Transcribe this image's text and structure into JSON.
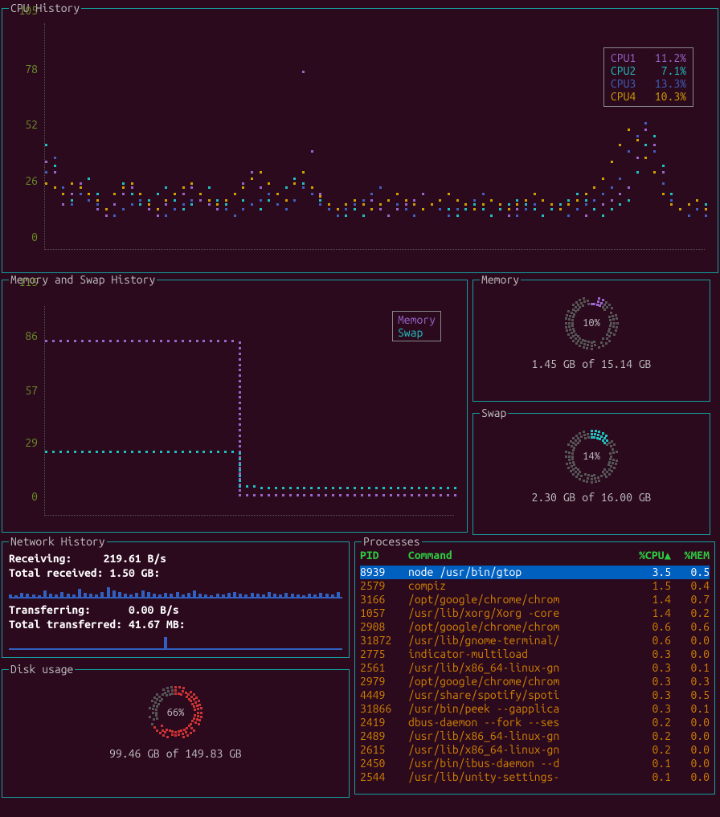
{
  "colors": {
    "bg": "#2c0a1e",
    "border": "#14a0a0",
    "axis_label": "#6b8e23",
    "text": "#c0c0c0",
    "cpu1": "#9966cc",
    "cpu2": "#20c0c0",
    "cpu3": "#4060c0",
    "cpu4": "#d0a000",
    "memory": "#9966cc",
    "swap": "#20c0c0",
    "net_bar": "#3060c0",
    "disk_fg": "#cc3333",
    "disk_bg": "#555555",
    "proc_header": "#2ecc40",
    "proc_text": "#d08000",
    "selected_bg": "#0060c0"
  },
  "cpu": {
    "title": "CPU History",
    "yticks": [
      0,
      26,
      52,
      78,
      105
    ],
    "ymax": 105,
    "legend": [
      {
        "label": "CPU1",
        "value": "11.2%",
        "color": "#9966cc"
      },
      {
        "label": "CPU2",
        "value": "7.1%",
        "color": "#20c0c0"
      },
      {
        "label": "CPU3",
        "value": "13.3%",
        "color": "#4060c0"
      },
      {
        "label": "CPU4",
        "value": "10.3%",
        "color": "#d0a000"
      }
    ],
    "series": {
      "cpu1": [
        40,
        35,
        20,
        25,
        30,
        22,
        18,
        15,
        20,
        25,
        28,
        22,
        18,
        15,
        20,
        22,
        25,
        28,
        22,
        20,
        18,
        22,
        25,
        30,
        35,
        28,
        22,
        20,
        18,
        22,
        82,
        45,
        25,
        20,
        18,
        15,
        18,
        20,
        22,
        18,
        15,
        18,
        20,
        22,
        25,
        20,
        18,
        15,
        18,
        20,
        22,
        25,
        22,
        18,
        15,
        18,
        20,
        18,
        15,
        18,
        20,
        22,
        18,
        15,
        18,
        20,
        22,
        25,
        28,
        42,
        55,
        48,
        35,
        22,
        18,
        15,
        18,
        20
      ],
      "cpu2": [
        48,
        38,
        25,
        22,
        28,
        32,
        25,
        18,
        25,
        30,
        25,
        20,
        22,
        25,
        28,
        22,
        18,
        20,
        25,
        28,
        22,
        20,
        25,
        22,
        20,
        18,
        22,
        25,
        28,
        32,
        30,
        25,
        22,
        20,
        18,
        15,
        18,
        15,
        18,
        20,
        22,
        20,
        18,
        15,
        18,
        20,
        22,
        18,
        15,
        18,
        20,
        18,
        15,
        18,
        20,
        22,
        20,
        18,
        15,
        18,
        20,
        22,
        25,
        22,
        18,
        15,
        18,
        20,
        22,
        35,
        48,
        52,
        38,
        25,
        18,
        15,
        18,
        20
      ],
      "cpu3": [
        35,
        42,
        28,
        20,
        25,
        22,
        20,
        18,
        15,
        18,
        20,
        22,
        20,
        18,
        15,
        18,
        20,
        22,
        25,
        22,
        20,
        18,
        15,
        18,
        20,
        22,
        25,
        20,
        18,
        22,
        28,
        25,
        20,
        18,
        15,
        18,
        20,
        22,
        25,
        28,
        22,
        20,
        18,
        15,
        18,
        20,
        18,
        15,
        18,
        20,
        22,
        25,
        22,
        20,
        18,
        15,
        18,
        20,
        22,
        20,
        18,
        15,
        18,
        20,
        22,
        25,
        28,
        32,
        45,
        52,
        58,
        45,
        30,
        22,
        18,
        15,
        18,
        15
      ],
      "cpu4": [
        30,
        28,
        25,
        30,
        28,
        25,
        22,
        18,
        25,
        28,
        30,
        25,
        20,
        18,
        22,
        25,
        28,
        30,
        25,
        22,
        20,
        22,
        25,
        28,
        32,
        35,
        30,
        25,
        22,
        30,
        35,
        28,
        24,
        20,
        18,
        20,
        22,
        20,
        18,
        20,
        22,
        25,
        22,
        20,
        18,
        20,
        22,
        25,
        22,
        20,
        18,
        20,
        22,
        20,
        18,
        20,
        22,
        25,
        22,
        20,
        18,
        20,
        22,
        25,
        28,
        32,
        40,
        48,
        55,
        50,
        42,
        35,
        25,
        20,
        18,
        20,
        22,
        18
      ]
    }
  },
  "mem_hist": {
    "title": "Memory and Swap History",
    "yticks": [
      0,
      29,
      57,
      86,
      115
    ],
    "ymax": 115,
    "legend": [
      {
        "label": "Memory",
        "color": "#9966cc"
      },
      {
        "label": "Swap",
        "color": "#20c0c0"
      }
    ],
    "memory_series": [
      95,
      95,
      95,
      95,
      95,
      95,
      95,
      95,
      95,
      95,
      95,
      95,
      95,
      95,
      95,
      95,
      95,
      95,
      95,
      95,
      95,
      95,
      95,
      95,
      95,
      95,
      95,
      10,
      10,
      10,
      10,
      10,
      10,
      10,
      10,
      10,
      10,
      10,
      10,
      10,
      10,
      10,
      10,
      10,
      10,
      10,
      10,
      10,
      10,
      10,
      10,
      10,
      10,
      10,
      10,
      10,
      10,
      10
    ],
    "swap_series": [
      34,
      34,
      34,
      34,
      34,
      34,
      34,
      34,
      34,
      34,
      34,
      34,
      34,
      34,
      34,
      34,
      34,
      34,
      34,
      34,
      34,
      34,
      34,
      34,
      34,
      34,
      34,
      15,
      15,
      15,
      14,
      14,
      14,
      14,
      14,
      14,
      14,
      14,
      14,
      14,
      14,
      14,
      14,
      14,
      14,
      14,
      14,
      14,
      14,
      14,
      14,
      14,
      14,
      14,
      14,
      14,
      14,
      14
    ]
  },
  "memory": {
    "title": "Memory",
    "percent": 10,
    "percent_label": "10%",
    "text": "1.45 GB of 15.14 GB",
    "fg_color": "#9966cc",
    "bg_color": "#555555"
  },
  "swap": {
    "title": "Swap",
    "percent": 14,
    "percent_label": "14%",
    "text": "2.30 GB of 16.00 GB",
    "fg_color": "#20c0c0",
    "bg_color": "#555555"
  },
  "network": {
    "title": "Network History",
    "receiving_label": "Receiving:",
    "receiving_value": "219.61 B/s",
    "total_received_label": "Total received:",
    "total_received_value": "1.50 GB:",
    "transferring_label": "Transferring:",
    "transferring_value": "0.00 B/s",
    "total_transferred_label": "Total transferred:",
    "total_transferred_value": "41.67 MB:",
    "rx_bars": [
      3,
      2,
      5,
      4,
      3,
      2,
      8,
      4,
      3,
      6,
      4,
      3,
      10,
      5,
      4,
      3,
      6,
      12,
      8,
      6,
      4,
      3,
      5,
      8,
      6,
      4,
      3,
      5,
      4,
      6,
      3,
      5,
      8,
      4,
      3,
      2,
      4,
      3,
      5,
      6,
      4,
      3,
      5,
      4,
      3,
      6,
      4,
      3,
      5,
      4,
      3,
      2,
      4,
      3,
      5,
      4,
      3,
      6
    ],
    "tx_bars": [
      0,
      0,
      0,
      0,
      0,
      0,
      0,
      0,
      0,
      0,
      0,
      0,
      0,
      0,
      0,
      0,
      0,
      0,
      0,
      0,
      0,
      0,
      0,
      0,
      0,
      0,
      0,
      14,
      0,
      0,
      0,
      0,
      0,
      0,
      0,
      0,
      0,
      0,
      0,
      0,
      0,
      0,
      0,
      0,
      0,
      0,
      0,
      0,
      0,
      0,
      0,
      0,
      0,
      0,
      0,
      0,
      0,
      0
    ]
  },
  "disk": {
    "title": "Disk usage",
    "percent": 66,
    "percent_label": "66%",
    "text": "99.46 GB of 149.83 GB",
    "fg_color": "#cc3333",
    "bg_color": "#555555"
  },
  "processes": {
    "title": "Processes",
    "headers": {
      "pid": "PID",
      "cmd": "Command",
      "cpu": "%CPU",
      "mem": "%MEM",
      "sort_indicator": "▲"
    },
    "rows": [
      {
        "pid": "8939",
        "cmd": "node /usr/bin/gtop",
        "cpu": "3.5",
        "mem": "0.5",
        "selected": true
      },
      {
        "pid": "2579",
        "cmd": "compiz",
        "cpu": "1.5",
        "mem": "0.4"
      },
      {
        "pid": "3166",
        "cmd": "/opt/google/chrome/chrom",
        "cpu": "1.4",
        "mem": "0.7"
      },
      {
        "pid": "1057",
        "cmd": "/usr/lib/xorg/Xorg -core",
        "cpu": "1.4",
        "mem": "0.2"
      },
      {
        "pid": "2908",
        "cmd": "/opt/google/chrome/chrom",
        "cpu": "0.6",
        "mem": "0.6"
      },
      {
        "pid": "31872",
        "cmd": "/usr/lib/gnome-terminal/",
        "cpu": "0.6",
        "mem": "0.0"
      },
      {
        "pid": "2775",
        "cmd": "indicator-multiload",
        "cpu": "0.3",
        "mem": "0.0"
      },
      {
        "pid": "2561",
        "cmd": "/usr/lib/x86_64-linux-gn",
        "cpu": "0.3",
        "mem": "0.1"
      },
      {
        "pid": "2979",
        "cmd": "/opt/google/chrome/chrom",
        "cpu": "0.3",
        "mem": "0.3"
      },
      {
        "pid": "4449",
        "cmd": "/usr/share/spotify/spoti",
        "cpu": "0.3",
        "mem": "0.5"
      },
      {
        "pid": "31866",
        "cmd": "/usr/bin/peek --gapplica",
        "cpu": "0.3",
        "mem": "0.1"
      },
      {
        "pid": "2419",
        "cmd": "dbus-daemon --fork --ses",
        "cpu": "0.2",
        "mem": "0.0"
      },
      {
        "pid": "2489",
        "cmd": "/usr/lib/x86_64-linux-gn",
        "cpu": "0.2",
        "mem": "0.0"
      },
      {
        "pid": "2615",
        "cmd": "/usr/lib/x86_64-linux-gn",
        "cpu": "0.2",
        "mem": "0.0"
      },
      {
        "pid": "2450",
        "cmd": "/usr/bin/ibus-daemon --d",
        "cpu": "0.1",
        "mem": "0.0"
      },
      {
        "pid": "2544",
        "cmd": "/usr/lib/unity-settings-",
        "cpu": "0.1",
        "mem": "0.0"
      }
    ]
  }
}
